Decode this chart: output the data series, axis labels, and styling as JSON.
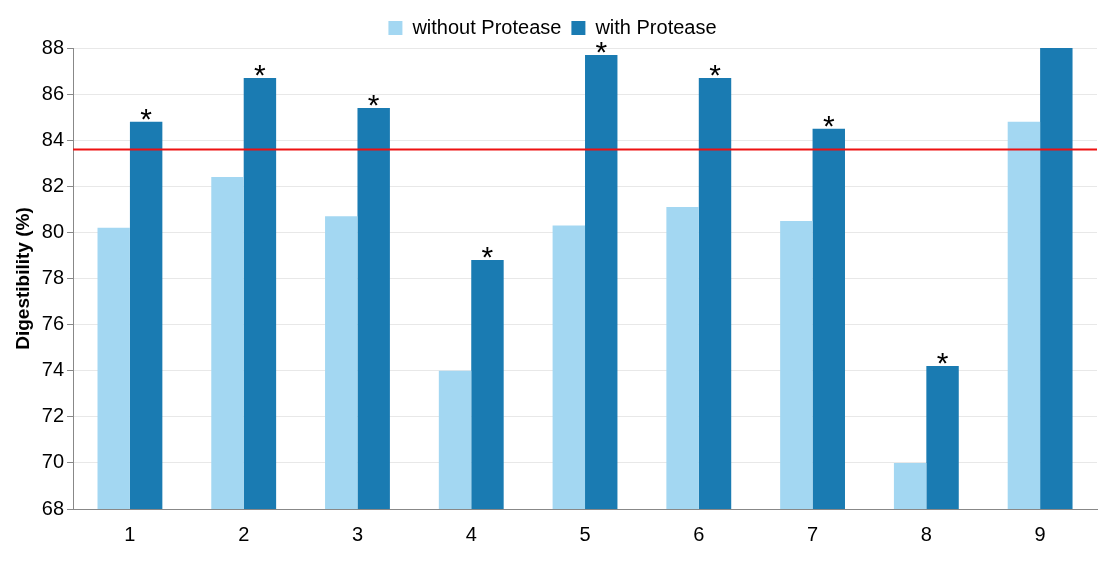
{
  "chart_data": {
    "type": "bar",
    "ylabel": "Digestibility (%)",
    "categories": [
      "1",
      "2",
      "3",
      "4",
      "5",
      "6",
      "7",
      "8",
      "9"
    ],
    "series": [
      {
        "name": "without Protease",
        "color": "#a3d7f2",
        "values": [
          80.2,
          82.4,
          80.7,
          74.0,
          80.3,
          81.1,
          80.5,
          70.0,
          84.8
        ]
      },
      {
        "name": "with Protease",
        "color": "#1a7bb2",
        "values": [
          84.8,
          86.7,
          85.4,
          78.8,
          87.7,
          86.7,
          84.5,
          74.2,
          88.0
        ]
      }
    ],
    "ylim": [
      68,
      88
    ],
    "yticks": [
      68,
      70,
      72,
      74,
      76,
      78,
      80,
      82,
      84,
      86,
      88
    ],
    "grid": "y",
    "legend": "top",
    "ref_lines": [
      {
        "axis": "y",
        "value": 83.6,
        "color": "#ee1111"
      }
    ],
    "annotations": [
      {
        "text": "*",
        "x": "1",
        "y": 84.8
      },
      {
        "text": "*",
        "x": "2",
        "y": 86.7
      },
      {
        "text": "*",
        "x": "3",
        "y": 85.4
      },
      {
        "text": "*",
        "x": "4",
        "y": 78.8
      },
      {
        "text": "*",
        "x": "5",
        "y": 87.7
      },
      {
        "text": "*",
        "x": "6",
        "y": 86.7
      },
      {
        "text": "*",
        "x": "7",
        "y": 84.5
      },
      {
        "text": "*",
        "x": "8",
        "y": 74.2
      }
    ]
  }
}
